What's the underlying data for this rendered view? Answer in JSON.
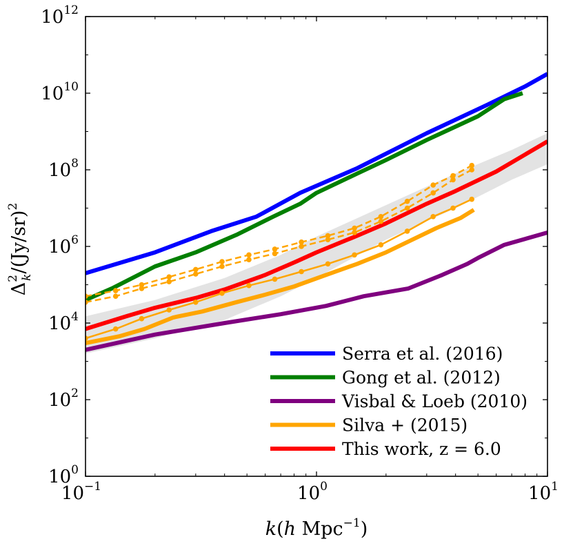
{
  "chart_data": {
    "type": "line",
    "xscale": "log",
    "yscale": "log",
    "xlim": [
      0.1,
      10
    ],
    "ylim": [
      1,
      1000000000000
    ],
    "xticks": [
      {
        "value": 0.1,
        "base": "10",
        "exp": "−1"
      },
      {
        "value": 1,
        "base": "10",
        "exp": "0"
      },
      {
        "value": 10,
        "base": "10",
        "exp": "1"
      }
    ],
    "yticks": [
      {
        "value": 1,
        "base": "10",
        "exp": "0"
      },
      {
        "value": 100,
        "base": "10",
        "exp": "2"
      },
      {
        "value": 10000,
        "base": "10",
        "exp": "4"
      },
      {
        "value": 1000000,
        "base": "10",
        "exp": "6"
      },
      {
        "value": 100000000,
        "base": "10",
        "exp": "8"
      },
      {
        "value": 10000000000,
        "base": "10",
        "exp": "10"
      },
      {
        "value": 1000000000000,
        "base": "10",
        "exp": "12"
      }
    ],
    "xlabel": {
      "k": "k",
      "open": "(",
      "h": "h",
      "unit": " Mpc",
      "sup": "−1",
      "close": ")"
    },
    "ylabel": {
      "delta": "Δ",
      "sup": "2",
      "sub": "k",
      "body": "/(Jy/sr)",
      "sup2": "2"
    },
    "legend_position": "lower-right",
    "band": {
      "color": "#e3e3e3",
      "x": [
        0.1,
        0.2,
        0.4,
        0.7,
        1.0,
        2.0,
        4.0,
        7.0,
        10.0
      ],
      "lower": [
        1600,
        4000,
        12000,
        50000,
        150000,
        1500000,
        10000000,
        55000000,
        140000000
      ],
      "upper": [
        15000,
        40000,
        150000,
        600000,
        1800000,
        12000000,
        80000000,
        330000000,
        900000000
      ]
    },
    "series": [
      {
        "name": "Serra et al. (2016)",
        "color": "#0000ff",
        "style": "solid",
        "width": 6,
        "in_legend": true,
        "x": [
          0.1,
          0.2,
          0.35,
          0.55,
          0.85,
          1.5,
          3.0,
          5.5,
          8.0,
          10.0
        ],
        "y": [
          200000,
          700000,
          2500000,
          6000000,
          25000000,
          110000000,
          900000000,
          5000000000,
          15000000000,
          32000000000
        ]
      },
      {
        "name": "Gong et al. (2012)",
        "color": "#007f00",
        "style": "solid",
        "width": 6,
        "in_legend": true,
        "x": [
          0.1,
          0.13,
          0.2,
          0.3,
          0.45,
          0.65,
          0.85,
          1.0,
          1.5,
          2.0,
          3.0,
          5.0,
          6.5,
          7.8
        ],
        "y": [
          40000,
          80000,
          300000,
          700000,
          2000000,
          6000000,
          13000000,
          25000000,
          80000000,
          180000000,
          600000000,
          2500000000,
          7000000000,
          10000000000
        ]
      },
      {
        "name": "Visbal & Loeb (2010)",
        "color": "#7f007f",
        "style": "solid",
        "width": 6,
        "in_legend": true,
        "x": [
          0.1,
          0.2,
          0.4,
          0.7,
          1.1,
          1.6,
          2.5,
          3.5,
          4.5,
          5.0,
          6.5,
          10.0
        ],
        "y": [
          2000,
          5000,
          10000,
          17000,
          28000,
          50000,
          80000,
          180000,
          350000,
          500000,
          1100000,
          2300000
        ]
      },
      {
        "name": "Silva + (2015)",
        "color": "#ffa500",
        "style": "solid",
        "width": 6,
        "in_legend": true,
        "x": [
          0.1,
          0.14,
          0.18,
          0.24,
          0.32,
          0.45,
          0.6,
          0.8,
          1.1,
          1.5,
          2.0,
          2.6,
          3.3,
          4.2,
          4.8
        ],
        "y": [
          3000,
          4500,
          7000,
          14000,
          20000,
          35000,
          55000,
          90000,
          180000,
          350000,
          700000,
          1500000,
          3000000,
          5500000,
          9000000
        ]
      },
      {
        "name": "This work, z = 6.0",
        "color": "#ff0000",
        "style": "solid",
        "width": 6,
        "in_legend": true,
        "x": [
          0.1,
          0.15,
          0.2,
          0.3,
          0.4,
          0.6,
          0.8,
          1.0,
          1.5,
          2.0,
          3.0,
          4.0,
          6.0,
          8.0,
          10.0
        ],
        "y": [
          7000,
          15000,
          25000,
          45000,
          75000,
          180000,
          380000,
          700000,
          1900000,
          4000000,
          13000000,
          28000000,
          90000000,
          250000000,
          550000000
        ]
      },
      {
        "name": "",
        "color": "#ffa500",
        "style": "dashed-markers",
        "width": 2.5,
        "in_legend": false,
        "x": [
          0.1,
          0.135,
          0.175,
          0.23,
          0.3,
          0.39,
          0.51,
          0.66,
          0.86,
          1.12,
          1.46,
          1.9,
          2.47,
          3.2,
          3.9,
          4.7
        ],
        "y": [
          50000,
          70000,
          100000,
          160000,
          250000,
          400000,
          600000,
          850000,
          1300000,
          1900000,
          3000000,
          6000000,
          15000000,
          40000000,
          70000000,
          130000000
        ]
      },
      {
        "name": "",
        "color": "#ffa500",
        "style": "dashed-markers",
        "width": 2.5,
        "in_legend": false,
        "x": [
          0.1,
          0.135,
          0.175,
          0.23,
          0.3,
          0.39,
          0.51,
          0.66,
          0.86,
          1.12,
          1.46,
          1.9,
          2.47,
          3.2,
          3.9,
          4.7
        ],
        "y": [
          35000,
          50000,
          80000,
          120000,
          190000,
          300000,
          450000,
          650000,
          1000000,
          1500000,
          2300000,
          4500000,
          10000000,
          25000000,
          55000000,
          100000000
        ]
      },
      {
        "name": "",
        "color": "#ffa500",
        "style": "solid-markers",
        "width": 2.5,
        "in_legend": false,
        "x": [
          0.1,
          0.135,
          0.175,
          0.23,
          0.3,
          0.39,
          0.51,
          0.66,
          0.86,
          1.12,
          1.46,
          1.9,
          2.47,
          3.2,
          3.9,
          4.7
        ],
        "y": [
          4000,
          7000,
          13000,
          22000,
          35000,
          60000,
          95000,
          140000,
          220000,
          350000,
          600000,
          1100000,
          2500000,
          6000000,
          10000000,
          17000000
        ]
      }
    ]
  }
}
